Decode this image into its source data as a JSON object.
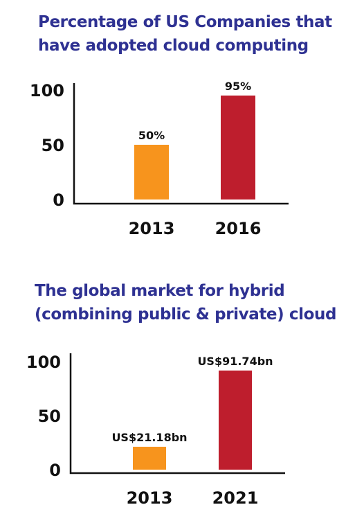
{
  "chart_data": [
    {
      "type": "bar",
      "title": "Percentage of US Companies that have adopted cloud computing",
      "title_lines": [
        "Percentage of US Companies that",
        "have adopted cloud computing"
      ],
      "categories": [
        "2013",
        "2016"
      ],
      "values": [
        50,
        95
      ],
      "data_labels": [
        "50%",
        "95%"
      ],
      "colors": [
        "#f7941d",
        "#be1e2d"
      ],
      "yticks": [
        0,
        50,
        100
      ],
      "ylim": [
        0,
        100
      ],
      "xlabel": "",
      "ylabel": "",
      "grid": false,
      "legend": "none"
    },
    {
      "type": "bar",
      "title": "The global market for hybrid (combining public & private) cloud",
      "title_lines": [
        "The global market for hybrid",
        "(combining public & private) cloud"
      ],
      "categories": [
        "2013",
        "2021"
      ],
      "values": [
        21.18,
        91.74
      ],
      "data_labels": [
        "US$21.18bn",
        "US$91.74bn"
      ],
      "colors": [
        "#f7941d",
        "#be1e2d"
      ],
      "yticks": [
        0,
        50,
        100
      ],
      "ylim": [
        0,
        100
      ],
      "xlabel": "",
      "ylabel": "",
      "grid": false,
      "legend": "none"
    }
  ]
}
